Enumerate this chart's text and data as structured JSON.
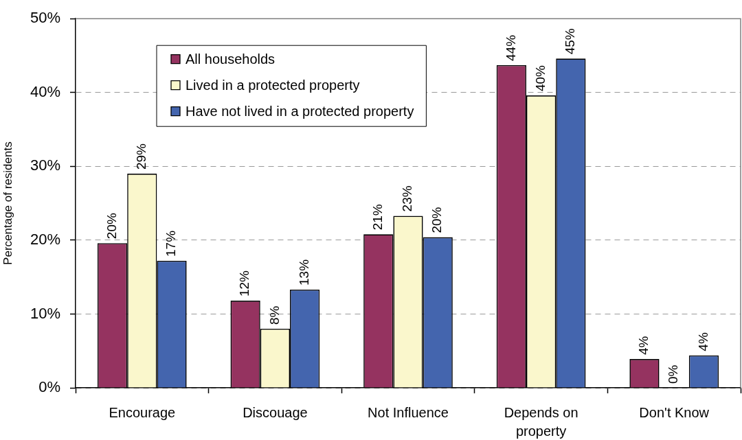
{
  "chart_data": {
    "type": "bar",
    "ylabel": "Percentage of residents",
    "categories": [
      "Encourage",
      "Discouage",
      "Not Influence",
      "Depends on property",
      "Don't Know"
    ],
    "series": [
      {
        "name": "All households",
        "color": "#953360",
        "values": [
          19.6,
          11.8,
          20.8,
          43.7,
          3.9
        ],
        "value_labels": [
          "20%",
          "12%",
          "21%",
          "44%",
          "4%"
        ]
      },
      {
        "name": "Lived in a protected property",
        "color": "#faf7cc",
        "values": [
          29.0,
          8.0,
          23.3,
          39.6,
          0
        ],
        "value_labels": [
          "29%",
          "8%",
          "23%",
          "40%",
          "0%"
        ]
      },
      {
        "name": "Have not lived in a protected property",
        "color": "#4465ae",
        "values": [
          17.2,
          13.3,
          20.4,
          44.6,
          4.4
        ],
        "value_labels": [
          "17%",
          "13%",
          "20%",
          "45%",
          "4%"
        ]
      }
    ],
    "ylim": [
      0,
      50
    ],
    "yticks": [
      {
        "value": 0,
        "label": "0%"
      },
      {
        "value": 10,
        "label": "10%"
      },
      {
        "value": 20,
        "label": "20%"
      },
      {
        "value": 30,
        "label": "30%"
      },
      {
        "value": 40,
        "label": "40%"
      },
      {
        "value": 50,
        "label": "50%"
      }
    ],
    "grid": "y",
    "legend": "top left"
  }
}
